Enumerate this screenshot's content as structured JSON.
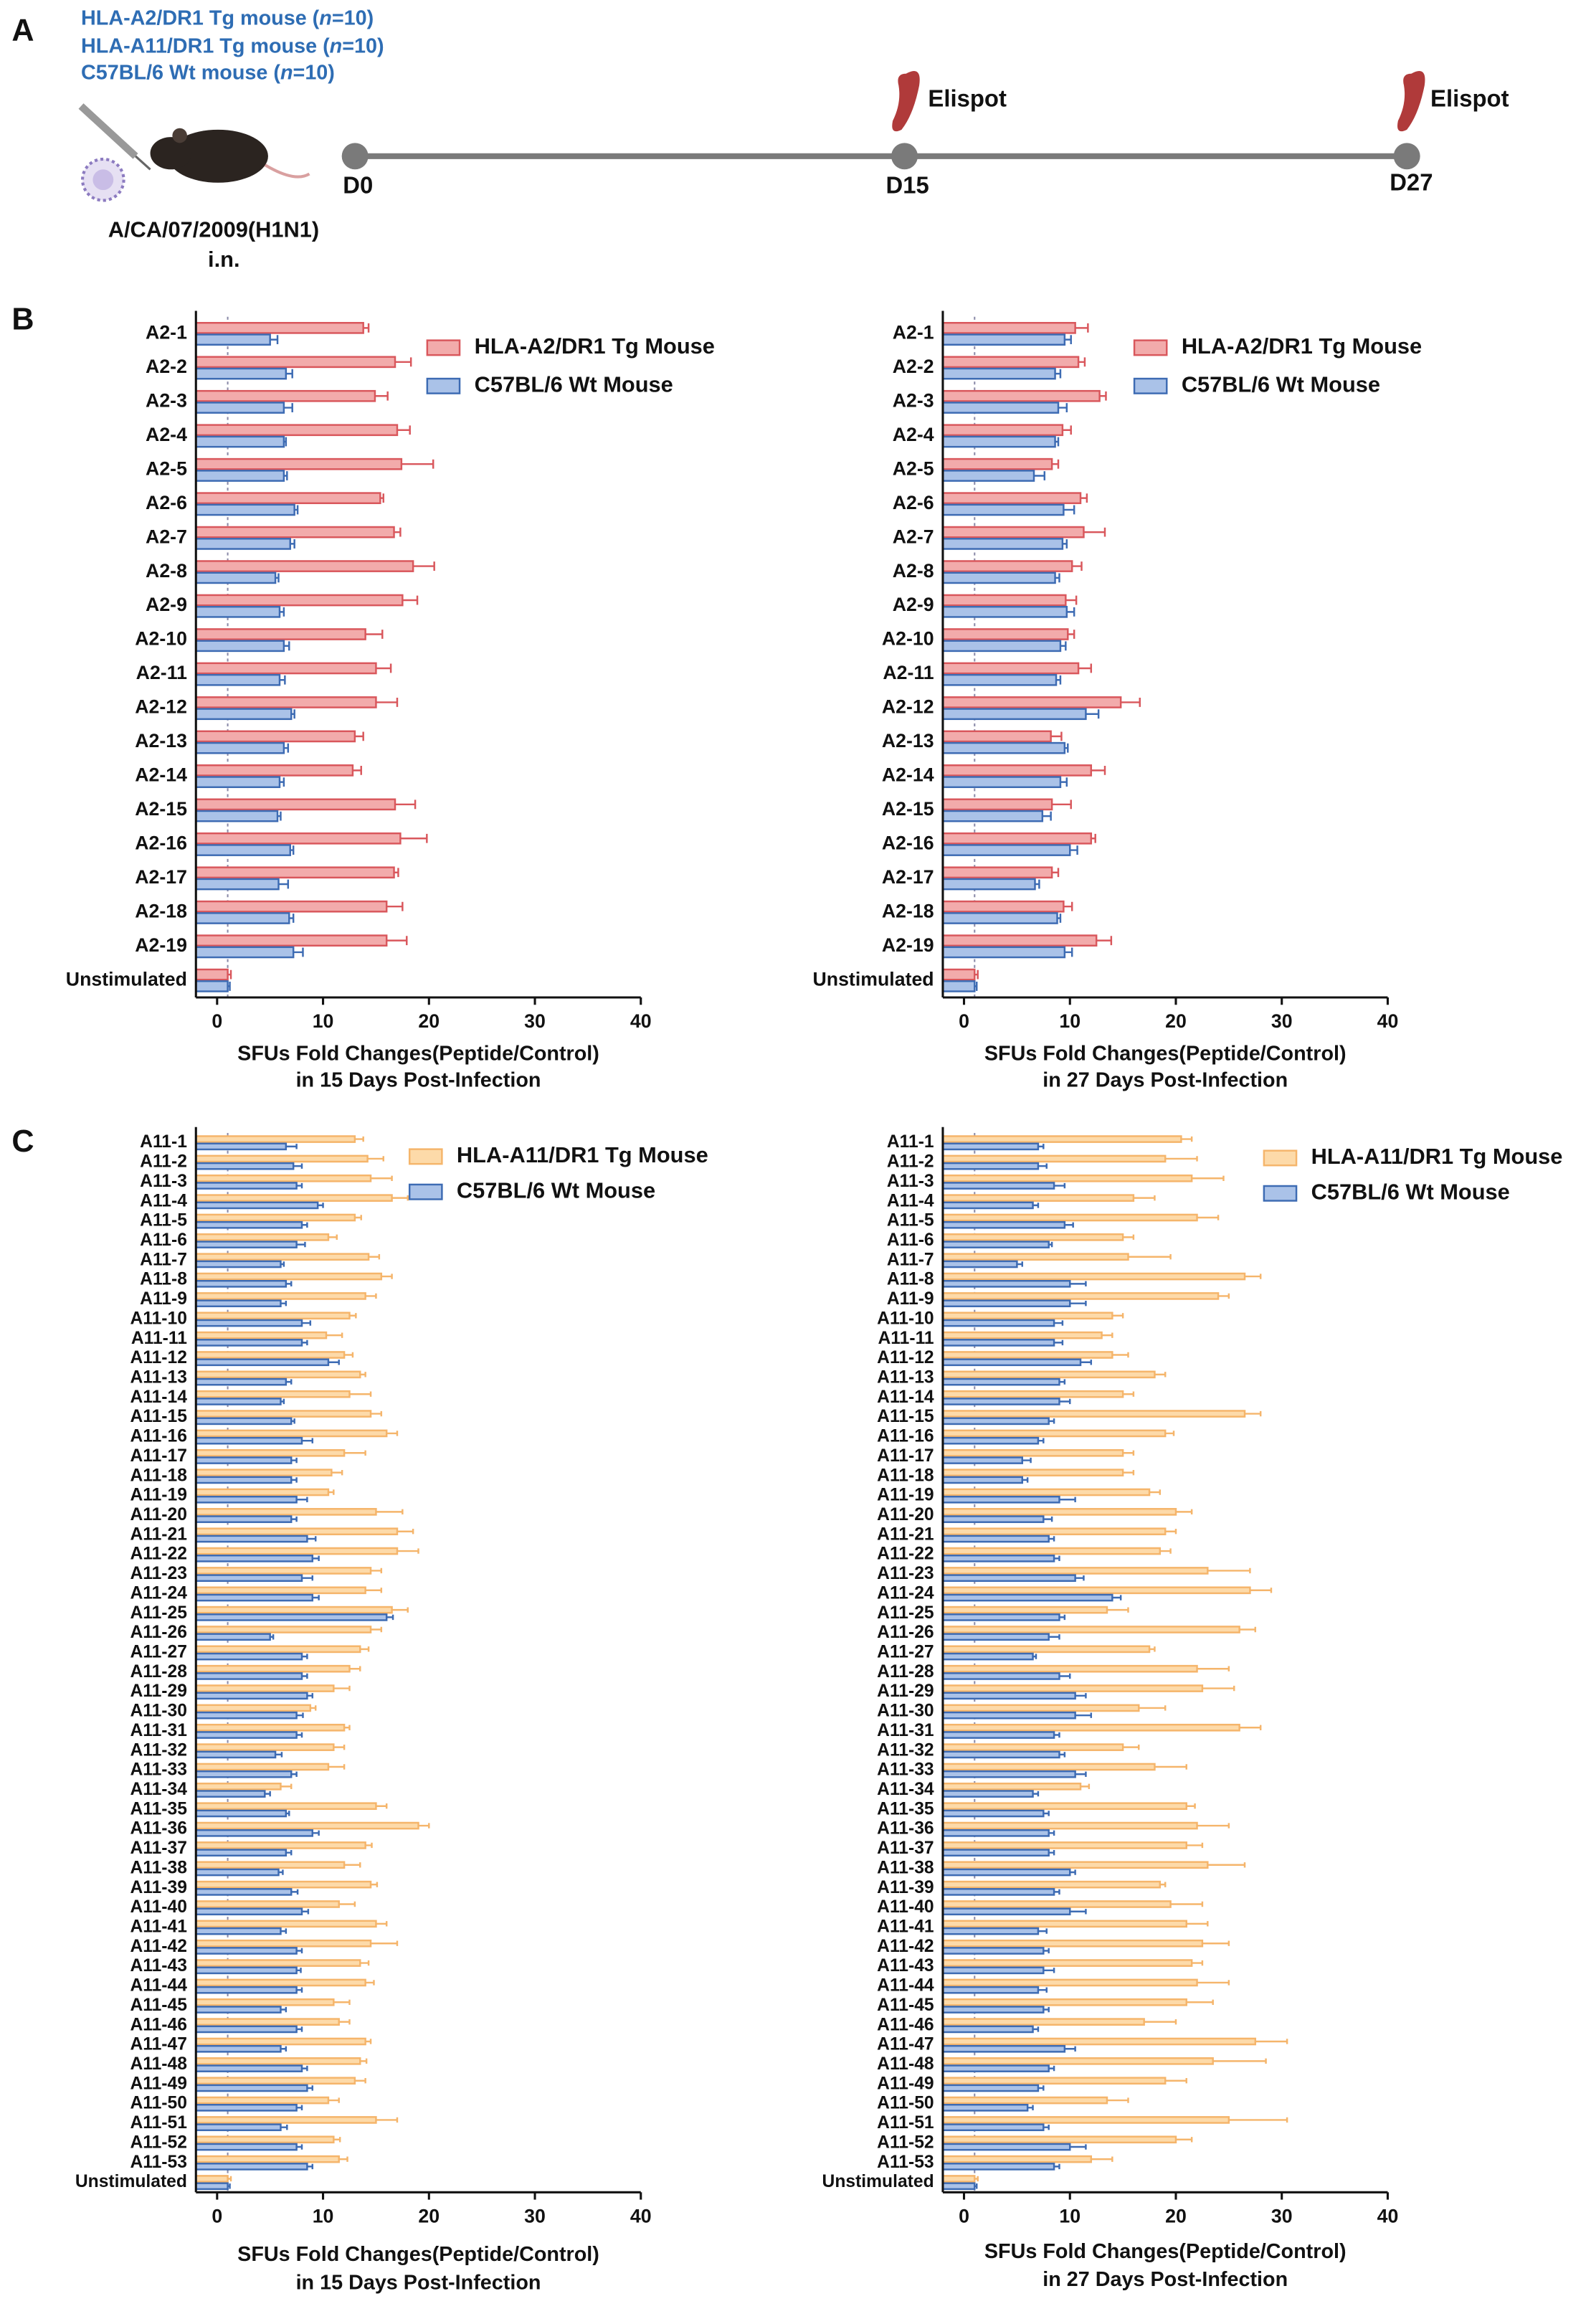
{
  "panel_labels": [
    "A",
    "B",
    "C"
  ],
  "design": {
    "groups": [
      {
        "text": "HLA-A2/DR1 Tg mouse (",
        "italic": "n",
        "rest": "=10)"
      },
      {
        "text": "HLA-A11/DR1 Tg mouse (",
        "italic": "n",
        "rest": "=10)"
      },
      {
        "text": "C57BL/6 Wt mouse (",
        "italic": "n",
        "rest": "=10)"
      }
    ],
    "infection": [
      "A/CA/07/2009(H1N1)",
      "i.n."
    ],
    "timepoints": [
      "D0",
      "D15",
      "D27"
    ],
    "assay": [
      "Elispot",
      "Elispot"
    ]
  },
  "chart_data": [
    {
      "type": "hbar",
      "categories": [
        "A2-1",
        "A2-2",
        "A2-3",
        "A2-4",
        "A2-5",
        "A2-6",
        "A2-7",
        "A2-8",
        "A2-9",
        "A2-10",
        "A2-11",
        "A2-12",
        "A2-13",
        "A2-14",
        "A2-15",
        "A2-16",
        "A2-17",
        "A2-18",
        "A2-19",
        "Unstimulated"
      ],
      "series": [
        {
          "name": "HLA-A2/DR1 Tg Mouse",
          "color": "#f2abab",
          "edge": "#d9575c",
          "values": [
            13.8,
            16.8,
            14.9,
            17.0,
            17.4,
            15.4,
            16.7,
            18.5,
            17.5,
            14.0,
            15.0,
            15.0,
            13.0,
            12.8,
            16.8,
            17.3,
            16.7,
            16.0,
            16.0,
            1.0
          ],
          "errors": [
            0.5,
            1.5,
            1.2,
            1.2,
            3.0,
            0.3,
            0.6,
            2.0,
            1.4,
            1.6,
            1.4,
            2.0,
            0.8,
            0.8,
            1.9,
            2.5,
            0.4,
            1.5,
            1.9,
            0.3
          ]
        },
        {
          "name": "C57BL/6 Wt Mouse",
          "color": "#aac2e8",
          "edge": "#3d6bb3",
          "values": [
            5.0,
            6.5,
            6.3,
            6.3,
            6.3,
            7.3,
            6.9,
            5.5,
            5.9,
            6.3,
            5.9,
            7.0,
            6.3,
            5.9,
            5.7,
            6.9,
            5.8,
            6.8,
            7.2,
            1.0
          ],
          "errors": [
            0.7,
            0.6,
            0.8,
            0.2,
            0.3,
            0.3,
            0.4,
            0.3,
            0.4,
            0.5,
            0.5,
            0.3,
            0.4,
            0.4,
            0.3,
            0.3,
            0.9,
            0.4,
            0.9,
            0.2
          ]
        }
      ],
      "xlim": [
        -2,
        40
      ],
      "xticks": [
        0,
        10,
        20,
        30,
        40
      ],
      "reference_line": 1,
      "legend": "upper right",
      "xlabel": [
        "SFUs Fold Changes(Peptide/Control)",
        "in 15 Days Post-Infection"
      ]
    },
    {
      "type": "hbar",
      "categories": [
        "A2-1",
        "A2-2",
        "A2-3",
        "A2-4",
        "A2-5",
        "A2-6",
        "A2-7",
        "A2-8",
        "A2-9",
        "A2-10",
        "A2-11",
        "A2-12",
        "A2-13",
        "A2-14",
        "A2-15",
        "A2-16",
        "A2-17",
        "A2-18",
        "A2-19",
        "Unstimulated"
      ],
      "series": [
        {
          "name": "HLA-A2/DR1 Tg Mouse",
          "color": "#f2abab",
          "edge": "#d9575c",
          "values": [
            10.5,
            10.8,
            12.8,
            9.3,
            8.3,
            11.0,
            11.3,
            10.2,
            9.6,
            9.8,
            10.8,
            14.8,
            8.2,
            12.0,
            8.3,
            12.0,
            8.3,
            9.4,
            12.5,
            1.0
          ],
          "errors": [
            1.2,
            0.6,
            0.6,
            0.8,
            0.6,
            0.6,
            2.0,
            0.9,
            1.0,
            0.6,
            1.2,
            1.8,
            1.0,
            1.3,
            1.8,
            0.4,
            0.6,
            0.8,
            1.4,
            0.3
          ]
        },
        {
          "name": "C57BL/6 Wt Mouse",
          "color": "#aac2e8",
          "edge": "#3d6bb3",
          "values": [
            9.5,
            8.6,
            8.9,
            8.6,
            6.6,
            9.4,
            9.3,
            8.6,
            9.7,
            9.1,
            8.7,
            11.5,
            9.5,
            9.1,
            7.4,
            10.0,
            6.7,
            8.8,
            9.5,
            1.0
          ],
          "errors": [
            0.6,
            0.5,
            0.8,
            0.3,
            1.0,
            1.0,
            0.4,
            0.4,
            0.7,
            0.5,
            0.4,
            1.2,
            0.3,
            0.6,
            0.8,
            0.7,
            0.4,
            0.3,
            0.7,
            0.2
          ]
        }
      ],
      "xlim": [
        -2,
        40
      ],
      "xticks": [
        0,
        10,
        20,
        30,
        40
      ],
      "reference_line": 1,
      "legend": "upper right",
      "xlabel": [
        "SFUs Fold Changes(Peptide/Control)",
        "in 27 Days Post-Infection"
      ]
    },
    {
      "type": "hbar",
      "categories": [
        "A11-1",
        "A11-2",
        "A11-3",
        "A11-4",
        "A11-5",
        "A11-6",
        "A11-7",
        "A11-8",
        "A11-9",
        "A11-10",
        "A11-11",
        "A11-12",
        "A11-13",
        "A11-14",
        "A11-15",
        "A11-16",
        "A11-17",
        "A11-18",
        "A11-19",
        "A11-20",
        "A11-21",
        "A11-22",
        "A11-23",
        "A11-24",
        "A11-25",
        "A11-26",
        "A11-27",
        "A11-28",
        "A11-29",
        "A11-30",
        "A11-31",
        "A11-32",
        "A11-33",
        "A11-34",
        "A11-35",
        "A11-36",
        "A11-37",
        "A11-38",
        "A11-39",
        "A11-40",
        "A11-41",
        "A11-42",
        "A11-43",
        "A11-44",
        "A11-45",
        "A11-46",
        "A11-47",
        "A11-48",
        "A11-49",
        "A11-50",
        "A11-51",
        "A11-52",
        "A11-53",
        "Unstimulated"
      ],
      "series": [
        {
          "name": "HLA-A11/DR1 Tg Mouse",
          "color": "#fddaa9",
          "edge": "#f5b56b",
          "values": [
            13.0,
            14.2,
            14.5,
            16.5,
            13.0,
            10.5,
            14.3,
            15.5,
            14.0,
            12.5,
            10.3,
            12.0,
            13.5,
            12.5,
            14.5,
            16.0,
            12.0,
            10.8,
            10.5,
            15.0,
            17.0,
            17.0,
            14.5,
            14.0,
            16.5,
            14.5,
            13.5,
            12.5,
            11.0,
            8.8,
            12.0,
            11.0,
            10.5,
            6.0,
            15.0,
            19.0,
            14.0,
            12.0,
            14.5,
            11.5,
            15.0,
            14.5,
            13.5,
            14.0,
            11.0,
            11.5,
            14.0,
            13.5,
            13.0,
            10.5,
            15.0,
            11.0,
            11.5,
            1.0
          ],
          "errors": [
            0.8,
            1.5,
            2.0,
            1.5,
            0.6,
            0.8,
            1.0,
            1.0,
            1.0,
            0.6,
            1.5,
            0.8,
            0.5,
            2.0,
            1.0,
            1.0,
            2.0,
            1.0,
            0.5,
            2.5,
            1.5,
            2.0,
            1.0,
            1.5,
            1.5,
            1.0,
            0.8,
            1.0,
            1.5,
            0.5,
            0.5,
            1.0,
            1.5,
            1.0,
            1.0,
            1.0,
            0.6,
            1.5,
            0.6,
            1.5,
            1.0,
            2.5,
            0.8,
            0.8,
            1.5,
            1.0,
            0.5,
            0.6,
            1.0,
            1.0,
            2.0,
            0.6,
            0.8,
            0.3
          ]
        },
        {
          "name": "C57BL/6 Wt Mouse",
          "color": "#aac2e8",
          "edge": "#3d6bb3",
          "values": [
            6.5,
            7.2,
            7.5,
            9.5,
            8.0,
            7.5,
            6.0,
            6.5,
            6.0,
            8.0,
            8.0,
            10.5,
            6.5,
            6.0,
            7.0,
            8.0,
            7.0,
            7.0,
            7.5,
            7.0,
            8.5,
            9.0,
            8.0,
            9.0,
            16.0,
            5.0,
            8.0,
            8.0,
            8.5,
            7.5,
            7.5,
            5.5,
            7.0,
            4.5,
            6.5,
            9.0,
            6.5,
            5.8,
            7.0,
            8.0,
            6.0,
            7.5,
            7.5,
            7.5,
            6.0,
            7.5,
            6.0,
            8.0,
            8.5,
            7.5,
            6.0,
            7.5,
            8.5,
            1.0
          ],
          "errors": [
            1.0,
            0.8,
            0.5,
            0.5,
            0.5,
            0.8,
            0.3,
            0.5,
            0.5,
            0.8,
            0.5,
            1.0,
            0.5,
            0.3,
            0.3,
            1.0,
            0.5,
            0.5,
            1.0,
            0.5,
            0.8,
            0.6,
            1.0,
            0.6,
            0.6,
            0.3,
            0.5,
            0.5,
            0.5,
            0.6,
            0.5,
            0.6,
            0.5,
            0.5,
            0.3,
            0.6,
            0.5,
            0.4,
            0.6,
            0.6,
            0.5,
            0.5,
            0.4,
            0.5,
            0.5,
            0.5,
            0.5,
            0.5,
            0.5,
            0.5,
            0.6,
            0.5,
            0.5,
            0.2
          ]
        }
      ],
      "xlim": [
        -2,
        40
      ],
      "xticks": [
        0,
        10,
        20,
        30,
        40
      ],
      "reference_line": 1,
      "legend": "upper right",
      "xlabel": [
        "SFUs Fold Changes(Peptide/Control)",
        "in 15 Days Post-Infection"
      ]
    },
    {
      "type": "hbar",
      "categories": [
        "A11-1",
        "A11-2",
        "A11-3",
        "A11-4",
        "A11-5",
        "A11-6",
        "A11-7",
        "A11-8",
        "A11-9",
        "A11-10",
        "A11-11",
        "A11-12",
        "A11-13",
        "A11-14",
        "A11-15",
        "A11-16",
        "A11-17",
        "A11-18",
        "A11-19",
        "A11-20",
        "A11-21",
        "A11-22",
        "A11-23",
        "A11-24",
        "A11-25",
        "A11-26",
        "A11-27",
        "A11-28",
        "A11-29",
        "A11-30",
        "A11-31",
        "A11-32",
        "A11-33",
        "A11-34",
        "A11-35",
        "A11-36",
        "A11-37",
        "A11-38",
        "A11-39",
        "A11-40",
        "A11-41",
        "A11-42",
        "A11-43",
        "A11-44",
        "A11-45",
        "A11-46",
        "A11-47",
        "A11-48",
        "A11-49",
        "A11-50",
        "A11-51",
        "A11-52",
        "A11-53",
        "Unstimulated"
      ],
      "series": [
        {
          "name": "HLA-A11/DR1 Tg Mouse",
          "color": "#fddaa9",
          "edge": "#f5b56b",
          "values": [
            20.5,
            19.0,
            21.5,
            16.0,
            22.0,
            15.0,
            15.5,
            26.5,
            24.0,
            14.0,
            13.0,
            14.0,
            18.0,
            15.0,
            26.5,
            19.0,
            15.0,
            15.0,
            17.5,
            20.0,
            19.0,
            18.5,
            23.0,
            27.0,
            13.5,
            26.0,
            17.5,
            22.0,
            22.5,
            16.5,
            26.0,
            15.0,
            18.0,
            11.0,
            21.0,
            22.0,
            21.0,
            23.0,
            18.5,
            19.5,
            21.0,
            22.5,
            21.5,
            22.0,
            21.0,
            17.0,
            27.5,
            23.5,
            19.0,
            13.5,
            25.0,
            20.0,
            12.0,
            1.0
          ],
          "errors": [
            1.0,
            3.0,
            3.0,
            2.0,
            2.0,
            1.0,
            4.0,
            1.5,
            1.0,
            1.0,
            1.0,
            1.5,
            1.0,
            1.0,
            1.5,
            0.8,
            1.0,
            1.0,
            1.0,
            1.5,
            1.0,
            1.0,
            4.0,
            2.0,
            2.0,
            1.5,
            0.5,
            3.0,
            3.0,
            2.5,
            2.0,
            1.5,
            3.0,
            0.8,
            0.8,
            3.0,
            1.5,
            3.5,
            0.5,
            3.0,
            2.0,
            2.5,
            1.0,
            3.0,
            2.5,
            3.0,
            3.0,
            5.0,
            2.0,
            2.0,
            5.5,
            1.5,
            2.0,
            0.3
          ]
        },
        {
          "name": "C57BL/6 Wt Mouse",
          "color": "#aac2e8",
          "edge": "#3d6bb3",
          "values": [
            7.0,
            7.0,
            8.5,
            6.5,
            9.5,
            8.0,
            5.0,
            10.0,
            10.0,
            8.5,
            8.5,
            11.0,
            9.0,
            9.0,
            8.0,
            7.0,
            5.5,
            5.5,
            9.0,
            7.5,
            8.0,
            8.5,
            10.5,
            14.0,
            9.0,
            8.0,
            6.5,
            9.0,
            10.5,
            10.5,
            8.5,
            9.0,
            10.5,
            6.5,
            7.5,
            8.0,
            8.0,
            10.0,
            8.5,
            10.0,
            7.0,
            7.5,
            7.5,
            7.0,
            7.5,
            6.5,
            9.5,
            8.0,
            7.0,
            6.0,
            7.5,
            10.0,
            8.5,
            1.0
          ],
          "errors": [
            0.5,
            0.8,
            1.0,
            0.5,
            0.8,
            0.3,
            0.5,
            1.5,
            1.5,
            0.8,
            0.8,
            1.0,
            0.5,
            1.0,
            0.5,
            0.5,
            0.8,
            0.5,
            1.5,
            0.8,
            0.5,
            0.5,
            0.8,
            0.8,
            0.5,
            1.0,
            0.3,
            1.0,
            1.0,
            1.5,
            0.5,
            0.5,
            1.0,
            0.5,
            0.5,
            0.5,
            0.5,
            0.5,
            0.5,
            1.5,
            0.8,
            0.5,
            1.0,
            0.8,
            0.5,
            0.5,
            1.0,
            0.5,
            0.5,
            0.5,
            0.5,
            1.5,
            0.5,
            0.2
          ]
        }
      ],
      "xlim": [
        -2,
        40
      ],
      "xticks": [
        0,
        10,
        20,
        30,
        40
      ],
      "reference_line": 1,
      "legend": "upper right",
      "xlabel": [
        "SFUs Fold Changes(Peptide/Control)",
        "in 27 Days Post-Infection"
      ]
    }
  ]
}
